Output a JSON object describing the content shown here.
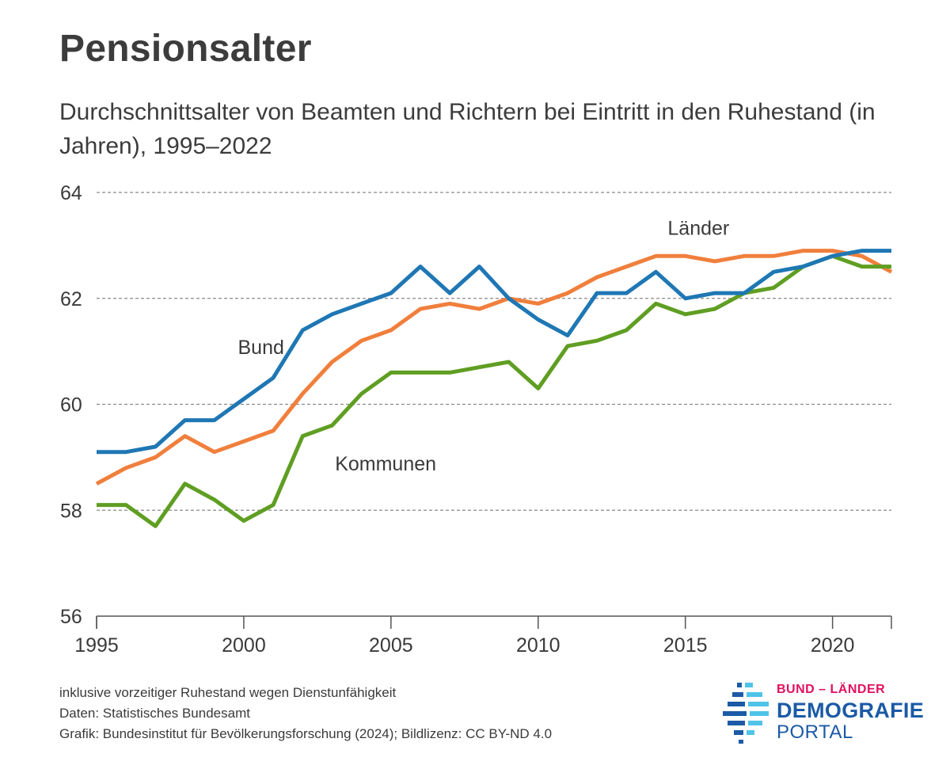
{
  "title": "Pensionsalter",
  "subtitle": "Durchschnittsalter von Beamten und Richtern bei Eintritt in den Ruhestand (in Jahren), 1995–2022",
  "footnotes": {
    "note": "inklusive vorzeitiger Ruhestand wegen Dienstunfähigkeit",
    "source": "Daten: Statistisches Bundesamt",
    "credit": "Grafik: Bundesinstitut für Bevölkerungsforschung (2024); Bildlizenz: CC BY-ND 4.0"
  },
  "logo": {
    "top": "BUND – LÄNDER",
    "middle": "DEMOGRAFIE",
    "bottom": "PORTAL",
    "colors": {
      "top": "#e0115f",
      "main": "#1b5aa6",
      "accent": "#4fc3e8"
    }
  },
  "chart_data": {
    "type": "line",
    "title": "Pensionsalter",
    "xlabel": "",
    "ylabel": "",
    "xlim": [
      1995,
      2022
    ],
    "ylim": [
      56,
      64
    ],
    "yticks": [
      56,
      58,
      60,
      62,
      64
    ],
    "xticks": [
      1995,
      2000,
      2005,
      2010,
      2015,
      2020
    ],
    "grid": "horizontal-dashed",
    "x": [
      1995,
      1996,
      1997,
      1998,
      1999,
      2000,
      2001,
      2002,
      2003,
      2004,
      2005,
      2006,
      2007,
      2008,
      2009,
      2010,
      2011,
      2012,
      2013,
      2014,
      2015,
      2016,
      2017,
      2018,
      2019,
      2020,
      2021,
      2022
    ],
    "series": [
      {
        "name": "Bund",
        "color": "#1f77b4",
        "label_at": [
          1999.8,
          60.95
        ],
        "values": [
          59.1,
          59.1,
          59.2,
          59.7,
          59.7,
          60.1,
          60.5,
          61.4,
          61.7,
          61.9,
          62.1,
          62.6,
          62.1,
          62.6,
          62.0,
          61.6,
          61.3,
          62.1,
          62.1,
          62.5,
          62.0,
          62.1,
          62.1,
          62.5,
          62.6,
          62.8,
          62.9,
          62.9
        ]
      },
      {
        "name": "Länder",
        "color": "#f07f3c",
        "label_at": [
          2014.4,
          63.2
        ],
        "values": [
          58.5,
          58.8,
          59.0,
          59.4,
          59.1,
          59.3,
          59.5,
          60.2,
          60.8,
          61.2,
          61.4,
          61.8,
          61.9,
          61.8,
          62.0,
          61.9,
          62.1,
          62.4,
          62.6,
          62.8,
          62.8,
          62.7,
          62.8,
          62.8,
          62.9,
          62.9,
          62.8,
          62.5
        ]
      },
      {
        "name": "Kommunen",
        "color": "#5f9e22",
        "label_at": [
          2003.1,
          58.75
        ],
        "values": [
          58.1,
          58.1,
          57.7,
          58.5,
          58.2,
          57.8,
          58.1,
          59.4,
          59.6,
          60.2,
          60.6,
          60.6,
          60.6,
          60.7,
          60.8,
          60.3,
          61.1,
          61.2,
          61.4,
          61.9,
          61.7,
          61.8,
          62.1,
          62.2,
          62.6,
          62.8,
          62.6,
          62.6
        ]
      }
    ]
  }
}
